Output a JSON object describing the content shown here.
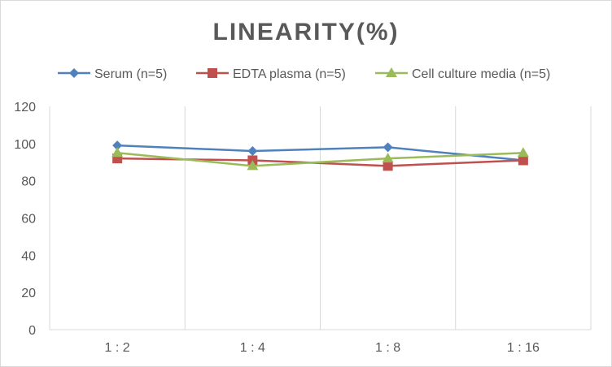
{
  "chart_data": {
    "type": "line",
    "title": "LINEARITY(%)",
    "xlabel": "",
    "ylabel": "",
    "categories": [
      "1:2",
      "1:4",
      "1:8",
      "1:16"
    ],
    "ylim": [
      0,
      120
    ],
    "yticks": [
      0,
      20,
      40,
      60,
      80,
      100,
      120
    ],
    "grid": "vertical",
    "legend_position": "top",
    "series": [
      {
        "name": "Serum (n=5)",
        "values": [
          99,
          96,
          98,
          91
        ],
        "color": "#4f81bd",
        "marker": "diamond"
      },
      {
        "name": "EDTA plasma (n=5)",
        "values": [
          92,
          91,
          88,
          91
        ],
        "color": "#c0504d",
        "marker": "square"
      },
      {
        "name": "Cell culture media (n=5)",
        "values": [
          95,
          88,
          92,
          95
        ],
        "color": "#9bbb59",
        "marker": "triangle"
      }
    ]
  }
}
